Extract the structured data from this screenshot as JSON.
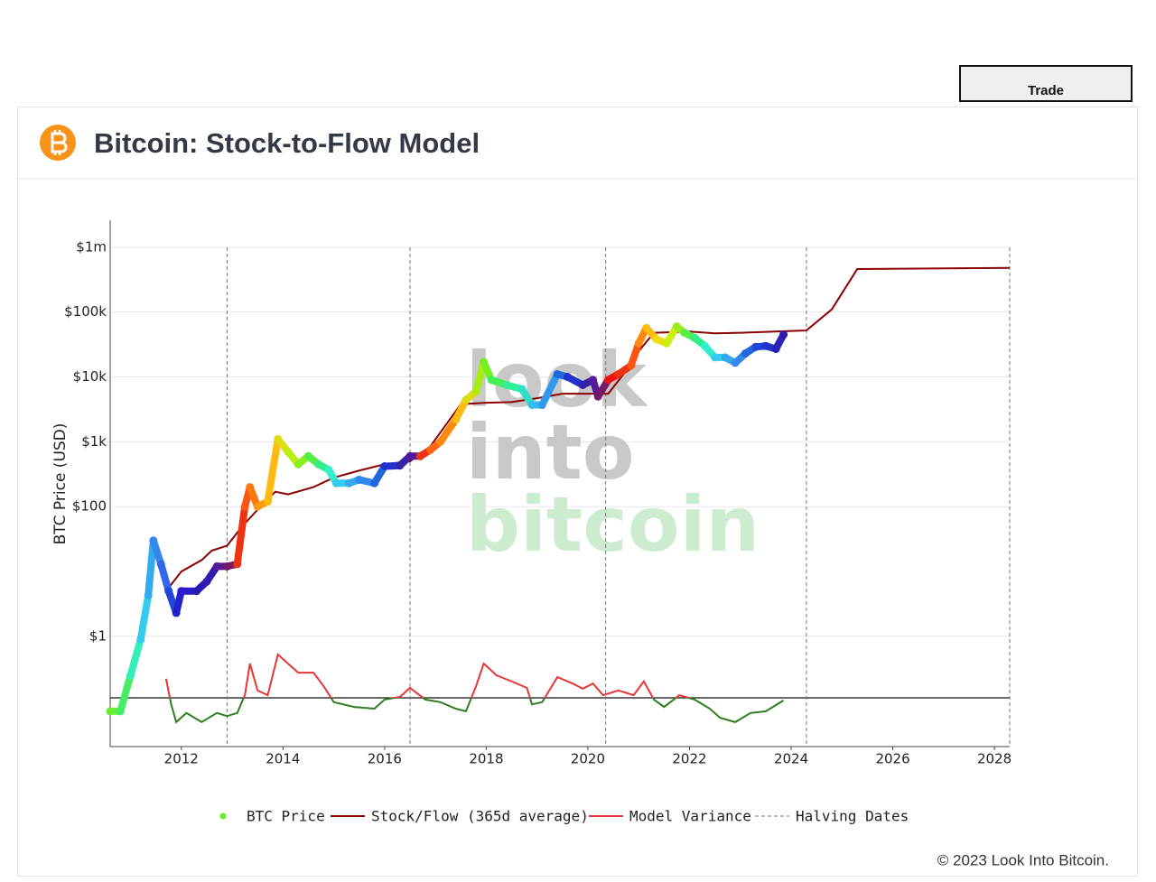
{
  "header": {
    "button": "Trade",
    "title": "Bitcoin: Stock-to-Flow Model"
  },
  "footer": "© 2023 Look Into Bitcoin.",
  "watermark": [
    "look",
    "into",
    "bitcoin"
  ],
  "chart_data": {
    "type": "line",
    "y_label": "BTC Price (USD)",
    "log_y": true,
    "grid": true,
    "y2_zeroline": true,
    "xlim": [
      2010.6,
      2028.3
    ],
    "xticks": [
      2012,
      2014,
      2016,
      2018,
      2020,
      2022,
      2024,
      2026,
      2028
    ],
    "ylim": [
      0.02,
      2600000
    ],
    "yticks": [
      {
        "value": 1,
        "label": "$1"
      },
      {
        "value": 100,
        "label": "$100"
      },
      {
        "value": 1000,
        "label": "$1k"
      },
      {
        "value": 10000,
        "label": "$10k"
      },
      {
        "value": 100000,
        "label": "$100k"
      },
      {
        "value": 1000000,
        "label": "$1m"
      }
    ],
    "y2lim": [
      -1.125,
      11.02
    ],
    "series": [
      {
        "name": "BTC Price",
        "type": "scatter",
        "color": "#66ee33",
        "x": [
          2010.6,
          2010.8,
          2011.0,
          2011.2,
          2011.35,
          2011.45,
          2011.6,
          2011.75,
          2011.9,
          2012.0,
          2012.3,
          2012.5,
          2012.7,
          2012.9,
          2013.1,
          2013.25,
          2013.35,
          2013.5,
          2013.7,
          2013.9,
          2014.1,
          2014.3,
          2014.5,
          2014.7,
          2014.9,
          2015.05,
          2015.3,
          2015.5,
          2015.8,
          2016.0,
          2016.3,
          2016.5,
          2016.7,
          2016.9,
          2017.1,
          2017.4,
          2017.6,
          2017.8,
          2017.95,
          2018.1,
          2018.4,
          2018.7,
          2018.9,
          2019.1,
          2019.4,
          2019.6,
          2019.9,
          2020.1,
          2020.2,
          2020.4,
          2020.6,
          2020.85,
          2021.0,
          2021.15,
          2021.35,
          2021.55,
          2021.75,
          2021.9,
          2022.1,
          2022.3,
          2022.5,
          2022.7,
          2022.9,
          2023.1,
          2023.3,
          2023.5,
          2023.7,
          2023.85
        ],
        "values": [
          0.07,
          0.07,
          0.25,
          0.9,
          4.3,
          30,
          13,
          5,
          2.3,
          5,
          5,
          7,
          12,
          12,
          13,
          100,
          200,
          100,
          120,
          1100,
          700,
          450,
          600,
          450,
          370,
          230,
          230,
          260,
          230,
          420,
          430,
          600,
          600,
          750,
          1000,
          2200,
          4400,
          6000,
          17000,
          9000,
          7500,
          6500,
          3700,
          3700,
          11000,
          10000,
          7500,
          9000,
          5000,
          9000,
          11000,
          15000,
          33000,
          57000,
          38000,
          33000,
          60000,
          48000,
          40000,
          30000,
          20000,
          20000,
          16500,
          23000,
          29000,
          30000,
          27000,
          45000
        ],
        "colors": [
          "#66ee33",
          "#44ee66",
          "#33eebb",
          "#33ccee",
          "#33aaee",
          "#3388ee",
          "#3366ee",
          "#2244dd",
          "#2222cc",
          "#2a1acc",
          "#2a1ab0",
          "#331aaa",
          "#551a99",
          "#771a66",
          "#ee3311",
          "#ff5511",
          "#ff7711",
          "#ff9911",
          "#ffbb11",
          "#dddd11",
          "#bbee11",
          "#88ee22",
          "#55ee44",
          "#33ee88",
          "#33eecc",
          "#33ccee",
          "#33aaee",
          "#3388ee",
          "#2266dd",
          "#2233cc",
          "#3322aa",
          "#551a99",
          "#ee3311",
          "#ff6611",
          "#ff8811",
          "#ffbb11",
          "#dddd11",
          "#aaee11",
          "#77ee22",
          "#44ee55",
          "#33ee99",
          "#33ddcc",
          "#33bbee",
          "#3399ee",
          "#2266dd",
          "#2233cc",
          "#3322aa",
          "#551a99",
          "#771a66",
          "#ee1111",
          "#ee3311",
          "#ff5511",
          "#ff8811",
          "#ffbb11",
          "#eedd11",
          "#ccee11",
          "#99ee22",
          "#55ee44",
          "#33ee88",
          "#33eecc",
          "#33ccee",
          "#33aaee",
          "#3388ee",
          "#2266dd",
          "#2244dd",
          "#2233cc",
          "#2a22bb",
          "#331aaa"
        ]
      },
      {
        "name": "Stock/Flow (365d average)",
        "type": "line",
        "color": "#8b0000",
        "x": [
          2011.75,
          2012.0,
          2012.4,
          2012.6,
          2012.9,
          2013.2,
          2013.5,
          2013.85,
          2014.1,
          2014.6,
          2015.0,
          2015.5,
          2016.0,
          2016.5,
          2016.9,
          2017.5,
          2018.0,
          2018.5,
          2019.0,
          2019.5,
          2020.0,
          2020.4,
          2020.7,
          2021.0,
          2021.3,
          2022.0,
          2022.5,
          2023.0,
          2024.3,
          2024.8,
          2025.3,
          2028.3
        ],
        "values": [
          5.6,
          10,
          15,
          21,
          25,
          50,
          90,
          170,
          155,
          200,
          280,
          360,
          450,
          500,
          850,
          3800,
          4000,
          4100,
          4700,
          5500,
          5500,
          5500,
          11000,
          25000,
          48000,
          50000,
          47000,
          48000,
          52000,
          110000,
          460000,
          480000
        ]
      },
      {
        "name": "Model Variance",
        "type": "line",
        "axis": "y2",
        "color": "#e83535",
        "negative_color": "#2e7d1f",
        "x": [
          2011.7,
          2011.8,
          2011.9,
          2012.1,
          2012.4,
          2012.7,
          2012.9,
          2013.1,
          2013.25,
          2013.35,
          2013.5,
          2013.7,
          2013.9,
          2014.1,
          2014.3,
          2014.6,
          2014.8,
          2015.0,
          2015.4,
          2015.8,
          2016.0,
          2016.3,
          2016.5,
          2016.8,
          2017.1,
          2017.4,
          2017.6,
          2017.8,
          2017.95,
          2018.2,
          2018.5,
          2018.8,
          2018.9,
          2019.1,
          2019.4,
          2019.7,
          2019.9,
          2020.1,
          2020.3,
          2020.6,
          2020.9,
          2021.1,
          2021.3,
          2021.5,
          2021.8,
          2022.1,
          2022.4,
          2022.6,
          2022.9,
          2023.2,
          2023.5,
          2023.85
        ],
        "values": [
          0.44,
          -0.15,
          -0.56,
          -0.35,
          -0.56,
          -0.35,
          -0.42,
          -0.35,
          0.06,
          0.79,
          0.17,
          0.06,
          1.0,
          0.79,
          0.58,
          0.58,
          0.27,
          -0.1,
          -0.21,
          -0.25,
          -0.04,
          0.02,
          0.23,
          -0.04,
          -0.1,
          -0.25,
          -0.31,
          0.27,
          0.79,
          0.52,
          0.38,
          0.23,
          -0.15,
          -0.1,
          0.48,
          0.33,
          0.21,
          0.33,
          0.06,
          0.17,
          0.06,
          0.38,
          -0.04,
          -0.21,
          0.06,
          -0.04,
          -0.25,
          -0.46,
          -0.56,
          -0.35,
          -0.31,
          -0.06
        ]
      },
      {
        "name": "Halving Dates",
        "type": "vline",
        "color": "#777777",
        "x": [
          2012.9,
          2016.5,
          2020.35,
          2024.3,
          2028.3
        ]
      }
    ]
  }
}
